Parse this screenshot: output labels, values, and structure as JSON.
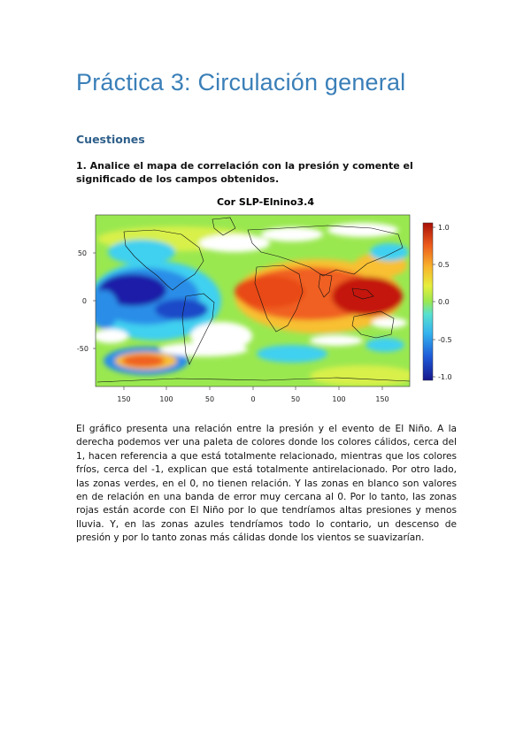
{
  "header": {
    "title": "Práctica 3: Circulación general",
    "section": "Cuestiones"
  },
  "question": "1. Analice el mapa de correlación con la presión y comente el significado de los campos obtenidos.",
  "figure": {
    "title": "Cor SLP-Elnino3.4",
    "xticks": [
      "150",
      "100",
      "50",
      "0",
      "50",
      "100",
      "150"
    ],
    "yticks": [
      "50",
      "0",
      "-50"
    ],
    "colorbar_ticks": [
      "1.0",
      "0.5",
      "0.0",
      "-0.5",
      "-1.0"
    ],
    "colors": {
      "strong_negative": "#1a1aa8",
      "negative": "#2a8ee8",
      "light_negative": "#3fd0f0",
      "neutral": "#9ae850",
      "neutral_light": "#d8f048",
      "positive_light": "#f8c030",
      "positive": "#f06020",
      "strong_positive": "#c41810",
      "no_data": "#ffffff"
    }
  },
  "body": "El gráfico presenta una relación entre la presión y el evento de El Niño. A la derecha podemos ver una paleta de colores donde los colores cálidos, cerca del 1, hacen referencia a que está totalmente relacionado, mientras que los colores fríos, cerca del -1, explican que está totalmente antirelacionado. Por otro lado, las zonas verdes, en el 0, no tienen relación. Y las zonas en blanco son valores en de relación en una banda de error muy cercana al 0. Por lo tanto, las zonas rojas están acorde con El Niño por lo que tendríamos altas presiones y menos lluvia. Y, en las zonas azules tendríamos todo lo contario, un descenso de presión y por lo tanto zonas más cálidas donde los vientos se suavizarían."
}
